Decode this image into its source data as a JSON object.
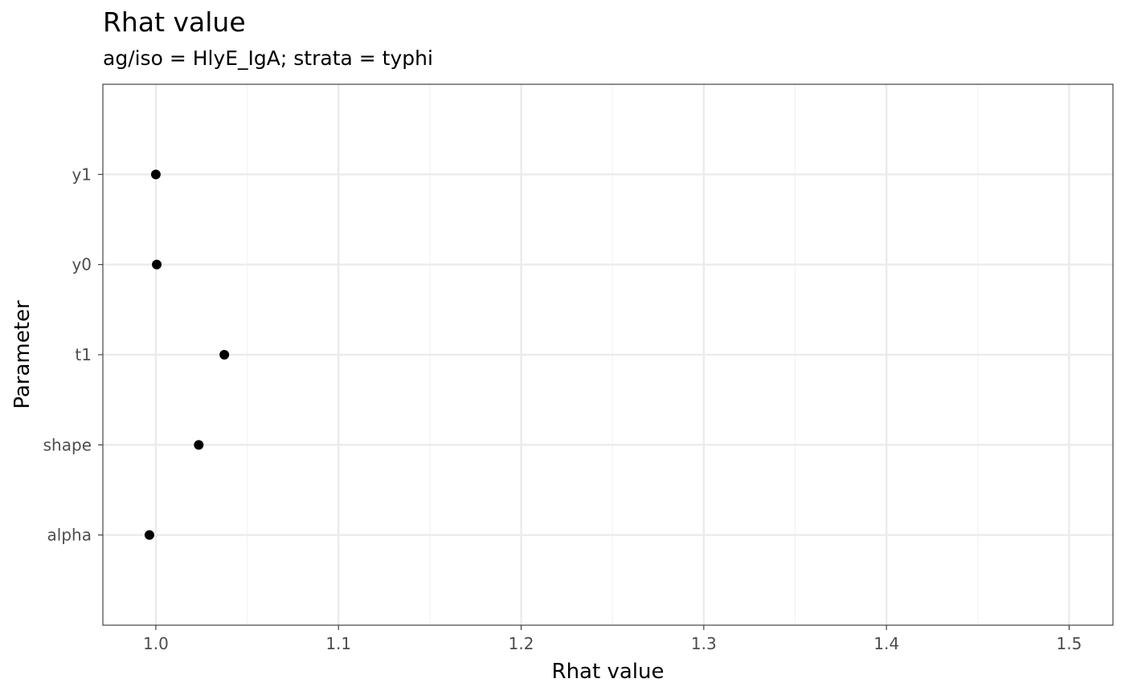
{
  "chart_data": {
    "type": "scatter",
    "title": "Rhat value",
    "subtitle": "ag/iso = HlyE_IgA; strata =  typhi",
    "xlabel": "Rhat value",
    "ylabel": "Parameter",
    "xlim": [
      0.971,
      1.524
    ],
    "x_ticks": [
      1.0,
      1.1,
      1.2,
      1.3,
      1.4,
      1.5
    ],
    "x_tick_labels": [
      "1.0",
      "1.1",
      "1.2",
      "1.3",
      "1.4",
      "1.5"
    ],
    "categories": [
      "alpha",
      "shape",
      "t1",
      "y0",
      "y1"
    ],
    "points": [
      {
        "parameter": "y1",
        "value": 1.0
      },
      {
        "parameter": "y0",
        "value": 1.0005
      },
      {
        "parameter": "t1",
        "value": 1.0375
      },
      {
        "parameter": "shape",
        "value": 1.0235
      },
      {
        "parameter": "alpha",
        "value": 0.9965
      }
    ],
    "grid": true,
    "colors": {
      "point": "#000000",
      "grid_major": "#ebebeb",
      "grid_minor": "#f3f3f3",
      "panel_border": "#333333"
    }
  }
}
